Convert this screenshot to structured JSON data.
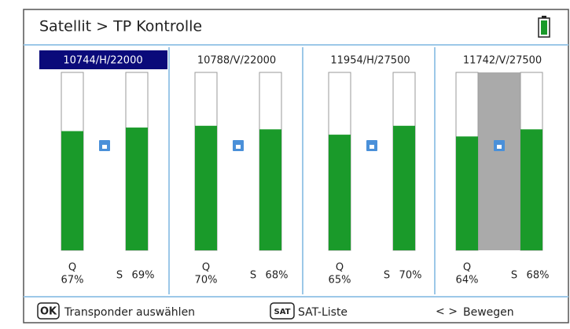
{
  "header": {
    "title": "Satellit > TP Kontrolle"
  },
  "quality_label": "Q",
  "signal_label": "S",
  "panels": [
    {
      "label": "10744/H/22000",
      "q": 67,
      "q_label": "67%",
      "s": 69,
      "s_label": "69%"
    },
    {
      "label": "10788/V/22000",
      "q": 70,
      "q_label": "70%",
      "s": 68,
      "s_label": "68%"
    },
    {
      "label": "11954/H/27500",
      "q": 65,
      "q_label": "65%",
      "s": 70,
      "s_label": "70%"
    },
    {
      "label": "11742/V/27500",
      "q": 64,
      "q_label": "64%",
      "s": 68,
      "s_label": "68%"
    }
  ],
  "footer": {
    "ok_key": "OK",
    "ok_text": "Transponder auswählen",
    "sat_key": "SAT",
    "sat_text": "SAT-Liste",
    "move_icon": "< >",
    "move_text": "Bewegen"
  }
}
